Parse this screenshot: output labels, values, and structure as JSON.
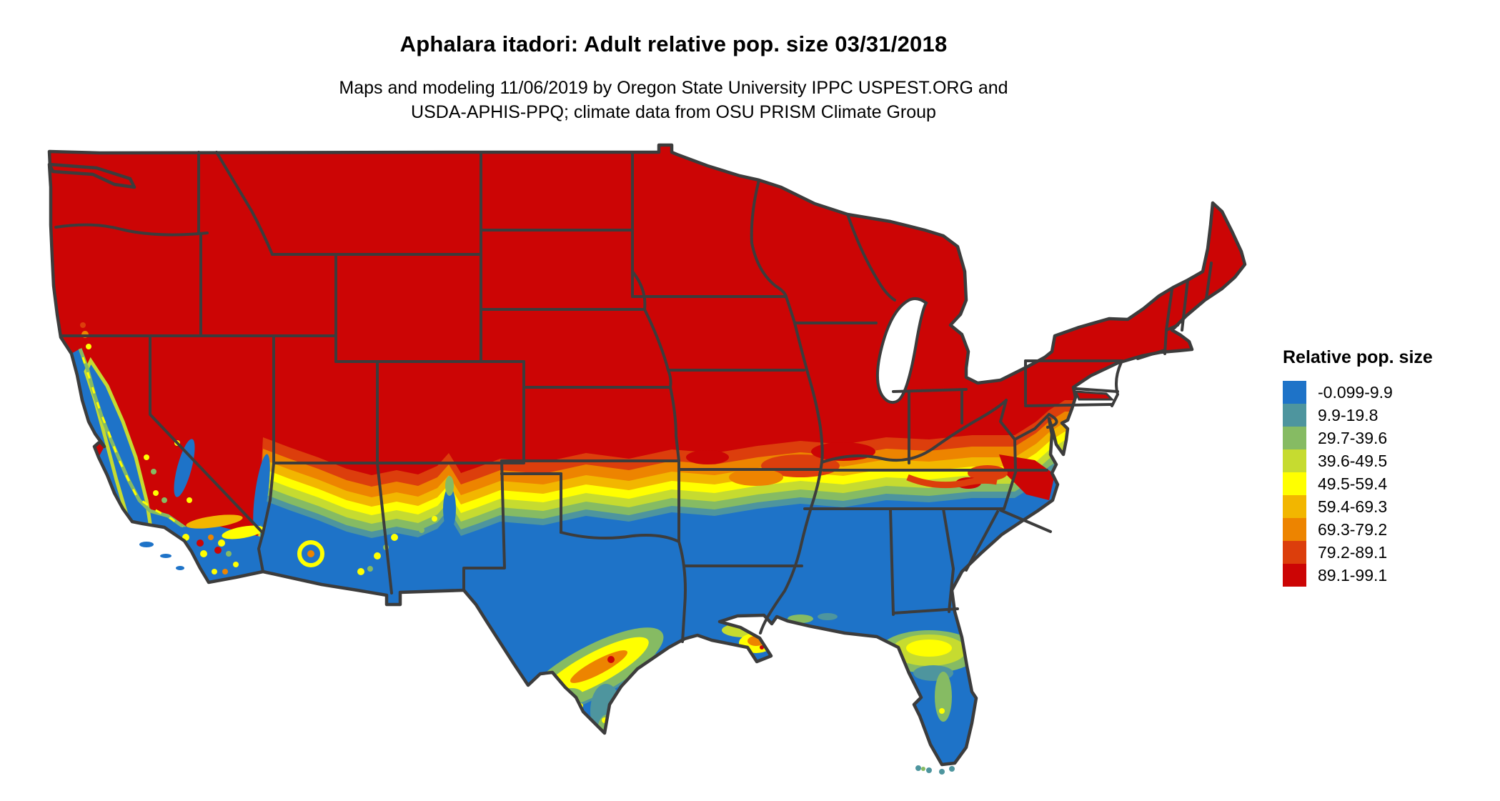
{
  "header": {
    "title": "Aphalara itadori: Adult relative pop. size 03/31/2018",
    "subtitle_line1": "Maps and modeling 11/06/2019 by Oregon State University IPPC USPEST.ORG and",
    "subtitle_line2": "USDA-APHIS-PPQ; climate data from OSU PRISM Climate Group"
  },
  "legend": {
    "title": "Relative pop. size",
    "entries": [
      {
        "label": "-0.099-9.9",
        "color": "#1E73C8"
      },
      {
        "label": "9.9-19.8",
        "color": "#4E959E"
      },
      {
        "label": "29.7-39.6",
        "color": "#86BB63"
      },
      {
        "label": "39.6-49.5",
        "color": "#C6DB30"
      },
      {
        "label": "49.5-59.4",
        "color": "#FFFF00"
      },
      {
        "label": "59.4-69.3",
        "color": "#F2B600"
      },
      {
        "label": "69.3-79.2",
        "color": "#ED8400"
      },
      {
        "label": "79.2-89.1",
        "color": "#DC3E0C"
      },
      {
        "label": "89.1-99.1",
        "color": "#CC0505"
      }
    ]
  },
  "map": {
    "region": "Contiguous United States",
    "kind": "raster choropleth of modeled adult relative population size",
    "state_border_color": "#3C3C3C",
    "water_background": "#FFFFFF",
    "observed_distribution": [
      "Northern and interior US (Pacific Northwest through Rockies, Plains, Midwest, Northeast): highest class 89.1-99.1 (red)",
      "Gulf Coast states, Florida, southern Texas, Carolinas coastal plain, southern Arizona/New Mexico, coastal and Central Valley California: lowest class -0.099-9.9 (blue)",
      "East-west transition band of intermediate classes across Texas panhandle, Oklahoma, Arkansas, Tennessee and the North Carolina/Virginia border",
      "Yellow/orange pockets along the central Texas coast, Louisiana delta, north Florida, and southern California mountains"
    ]
  }
}
